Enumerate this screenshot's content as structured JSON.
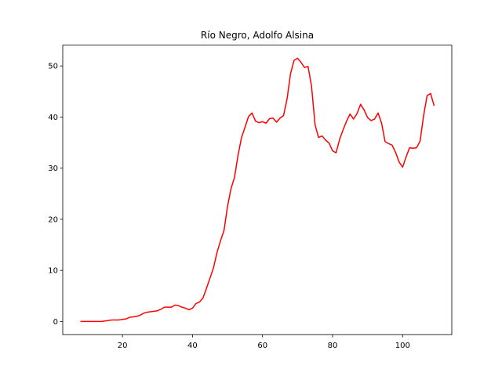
{
  "chart_data": {
    "type": "line",
    "title": "Río Negro, Adolfo Alsina",
    "x": [
      8,
      9,
      10,
      11,
      12,
      13,
      14,
      15,
      16,
      17,
      18,
      19,
      20,
      21,
      22,
      23,
      24,
      25,
      26,
      27,
      28,
      29,
      30,
      31,
      32,
      33,
      34,
      35,
      36,
      37,
      38,
      39,
      40,
      41,
      42,
      43,
      44,
      45,
      46,
      47,
      48,
      49,
      50,
      51,
      52,
      53,
      54,
      55,
      56,
      57,
      58,
      59,
      60,
      61,
      62,
      63,
      64,
      65,
      66,
      67,
      68,
      69,
      70,
      71,
      72,
      73,
      74,
      75,
      76,
      77,
      78,
      79,
      80,
      81,
      82,
      83,
      84,
      85,
      86,
      87,
      88,
      89,
      90,
      91,
      92,
      93,
      94,
      95,
      96,
      97,
      98,
      99,
      100,
      101,
      102,
      103,
      104,
      105,
      106,
      107,
      108,
      109
    ],
    "series": [
      {
        "color": "#ff0000",
        "values": [
          0,
          0,
          0,
          0,
          0,
          0,
          0,
          0.1,
          0.2,
          0.3,
          0.3,
          0.3,
          0.4,
          0.5,
          0.8,
          0.9,
          1.0,
          1.2,
          1.6,
          1.8,
          1.9,
          2.0,
          2.1,
          2.4,
          2.8,
          2.8,
          2.8,
          3.2,
          3.1,
          2.8,
          2.6,
          2.3,
          2.6,
          3.5,
          3.8,
          4.6,
          6.5,
          8.5,
          10.5,
          13.5,
          15.8,
          17.8,
          22.5,
          26,
          28.2,
          32.5,
          36,
          38,
          40.1,
          40.8,
          39.2,
          38.9,
          39.1,
          38.8,
          39.7,
          39.8,
          39.0,
          39.8,
          40.3,
          43.5,
          48.5,
          51.1,
          51.5,
          50.7,
          49.7,
          49.9,
          46,
          38.5,
          36,
          36.3,
          35.5,
          34.9,
          33.4,
          33,
          35.6,
          37.5,
          39.2,
          40.6,
          39.6,
          40.7,
          42.5,
          41.4,
          39.9,
          39.3,
          39.6,
          40.8,
          38.8,
          35.2,
          34.8,
          34.5,
          33.1,
          31.2,
          30.2,
          32.2,
          34,
          33.9,
          34,
          35.3,
          40.3,
          44.2,
          44.6,
          42.2
        ]
      }
    ],
    "xlim": [
      2.95,
      114.05
    ],
    "ylim": [
      -2.575,
      54.075
    ],
    "xticks": [
      20,
      40,
      60,
      80,
      100
    ],
    "yticks": [
      0,
      10,
      20,
      30,
      40,
      50
    ]
  }
}
